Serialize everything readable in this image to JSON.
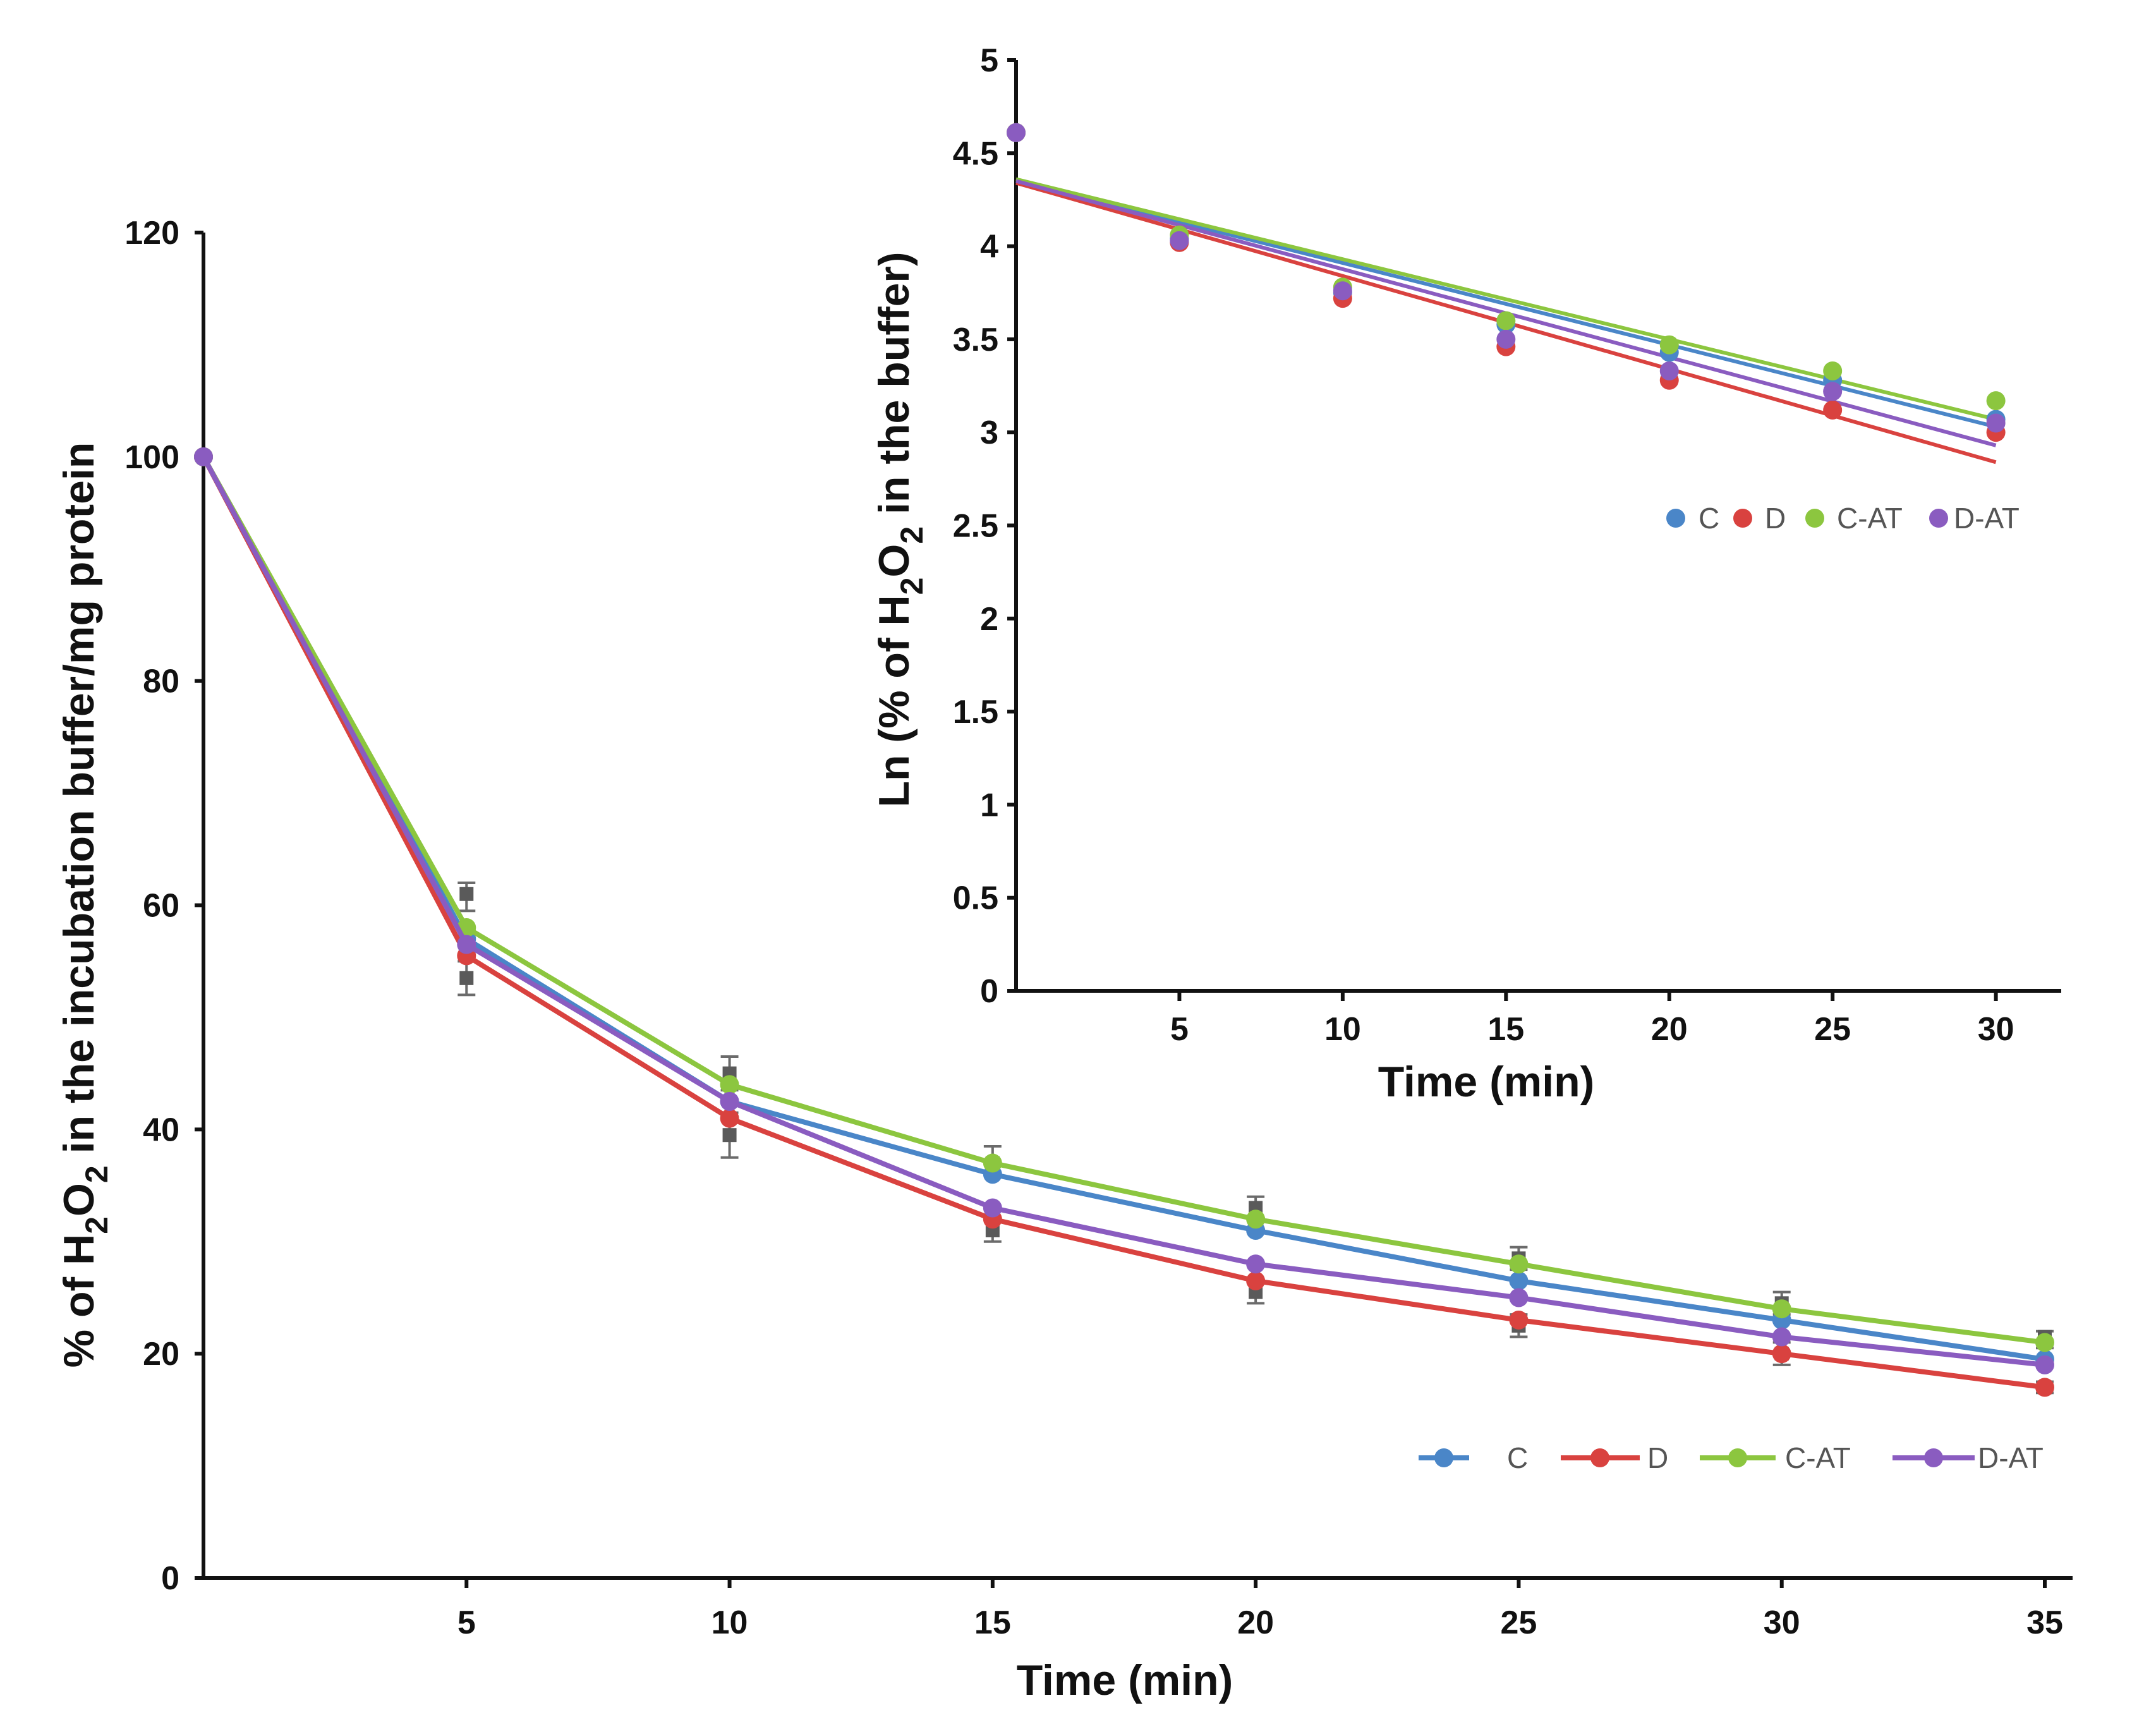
{
  "chart_data": [
    {
      "id": "main",
      "type": "line",
      "title": "",
      "xlabel": "Time (min)",
      "ylabel_parts": [
        "% of H",
        "2",
        "O",
        "2",
        " in the incubation buffer/mg protein"
      ],
      "x": [
        0,
        5,
        10,
        15,
        20,
        25,
        30,
        35
      ],
      "xlim": [
        0,
        35
      ],
      "ylim": [
        0,
        120
      ],
      "x_ticks": [
        5,
        10,
        15,
        20,
        25,
        30,
        35
      ],
      "y_ticks": [
        0,
        20,
        40,
        60,
        80,
        100,
        120
      ],
      "legend_position": "lower-right",
      "series": [
        {
          "name": "C",
          "color": "#4a86c8",
          "values": [
            100,
            57,
            42.5,
            36,
            31,
            26.5,
            23,
            19.5
          ]
        },
        {
          "name": "D",
          "color": "#d9423f",
          "values": [
            100,
            55.5,
            41,
            32,
            26.5,
            23,
            20,
            17
          ]
        },
        {
          "name": "C-AT",
          "color": "#8cc63f",
          "values": [
            100,
            58,
            44,
            37,
            32,
            28,
            24,
            21
          ]
        },
        {
          "name": "D-AT",
          "color": "#8a5cc0",
          "values": [
            100,
            56.5,
            42.5,
            33,
            28,
            25,
            21.5,
            19
          ]
        }
      ],
      "error_bar_points": [
        {
          "x": 5,
          "y": 53.5,
          "low": 52,
          "high": 55
        },
        {
          "x": 5,
          "y": 61,
          "low": 59.5,
          "high": 62
        },
        {
          "x": 10,
          "y": 39.5,
          "low": 37.5,
          "high": 41.5
        },
        {
          "x": 10,
          "y": 45,
          "low": 43.5,
          "high": 46.5
        },
        {
          "x": 15,
          "y": 31,
          "low": 30,
          "high": 32
        },
        {
          "x": 15,
          "y": 37,
          "low": 36,
          "high": 38.5
        },
        {
          "x": 20,
          "y": 25.5,
          "low": 24.5,
          "high": 26.5
        },
        {
          "x": 20,
          "y": 33,
          "low": 32,
          "high": 34
        },
        {
          "x": 25,
          "y": 22.5,
          "low": 21.5,
          "high": 23.5
        },
        {
          "x": 25,
          "y": 28.5,
          "low": 27.5,
          "high": 29.5
        },
        {
          "x": 30,
          "y": 20,
          "low": 19,
          "high": 21
        },
        {
          "x": 30,
          "y": 24.5,
          "low": 23.5,
          "high": 25.5
        },
        {
          "x": 35,
          "y": 17,
          "low": 16.5,
          "high": 17.5
        },
        {
          "x": 35,
          "y": 21.5,
          "low": 20.5,
          "high": 22
        }
      ]
    },
    {
      "id": "inset",
      "type": "scatter",
      "title": "",
      "xlabel": "Time (min)",
      "ylabel_parts": [
        "Ln (% of H",
        "2",
        "O",
        "2",
        " in the buffer)"
      ],
      "x": [
        0,
        5,
        10,
        15,
        20,
        25,
        30
      ],
      "xlim": [
        0,
        32
      ],
      "ylim": [
        0,
        5
      ],
      "x_ticks": [
        5,
        10,
        15,
        20,
        25,
        30
      ],
      "y_ticks": [
        0,
        0.5,
        1,
        1.5,
        2,
        2.5,
        3,
        3.5,
        4,
        4.5,
        5
      ],
      "y_tick_labels": [
        "0",
        "0.5",
        "1",
        "1.5",
        "2",
        "2.5",
        "3",
        "3.5",
        "4",
        "4.5",
        "5"
      ],
      "legend_position": "right",
      "series": [
        {
          "name": "C",
          "color": "#4a86c8",
          "values": [
            4.61,
            4.04,
            3.75,
            3.58,
            3.43,
            3.28,
            3.07
          ],
          "fit": [
            4.35,
            3.03
          ]
        },
        {
          "name": "D",
          "color": "#d9423f",
          "values": [
            4.61,
            4.02,
            3.72,
            3.46,
            3.28,
            3.12,
            3.0
          ],
          "fit": [
            4.34,
            2.84
          ]
        },
        {
          "name": "C-AT",
          "color": "#8cc63f",
          "values": [
            4.61,
            4.06,
            3.78,
            3.6,
            3.47,
            3.33,
            3.17
          ],
          "fit": [
            4.36,
            3.07
          ]
        },
        {
          "name": "D-AT",
          "color": "#8a5cc0",
          "values": [
            4.61,
            4.03,
            3.76,
            3.5,
            3.33,
            3.22,
            3.05
          ],
          "fit": [
            4.35,
            2.93
          ]
        }
      ]
    }
  ]
}
